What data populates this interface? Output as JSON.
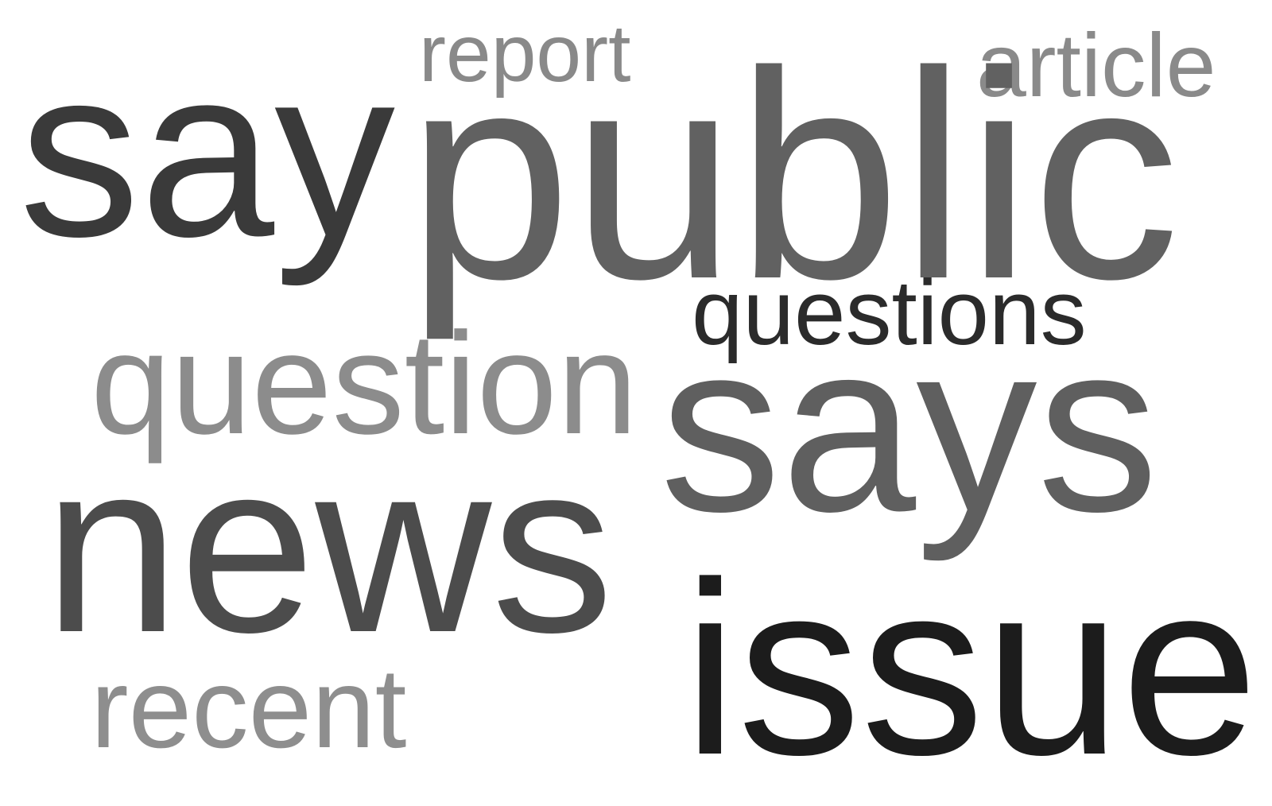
{
  "words": [
    {
      "id": "report",
      "text": "report",
      "color": "#898989"
    },
    {
      "id": "article",
      "text": "article",
      "color": "#8a8a8a"
    },
    {
      "id": "say",
      "text": "say",
      "color": "#3a3a3a"
    },
    {
      "id": "public",
      "text": "public",
      "color": "#616161"
    },
    {
      "id": "questions",
      "text": "questions",
      "color": "#2b2b2b"
    },
    {
      "id": "question",
      "text": "question",
      "color": "#8c8c8c"
    },
    {
      "id": "says",
      "text": "says",
      "color": "#5f5f5f"
    },
    {
      "id": "news",
      "text": "news",
      "color": "#4c4c4c"
    },
    {
      "id": "issue",
      "text": "issue",
      "color": "#1c1c1c"
    },
    {
      "id": "recent",
      "text": "recent",
      "color": "#8e8e8e"
    }
  ]
}
